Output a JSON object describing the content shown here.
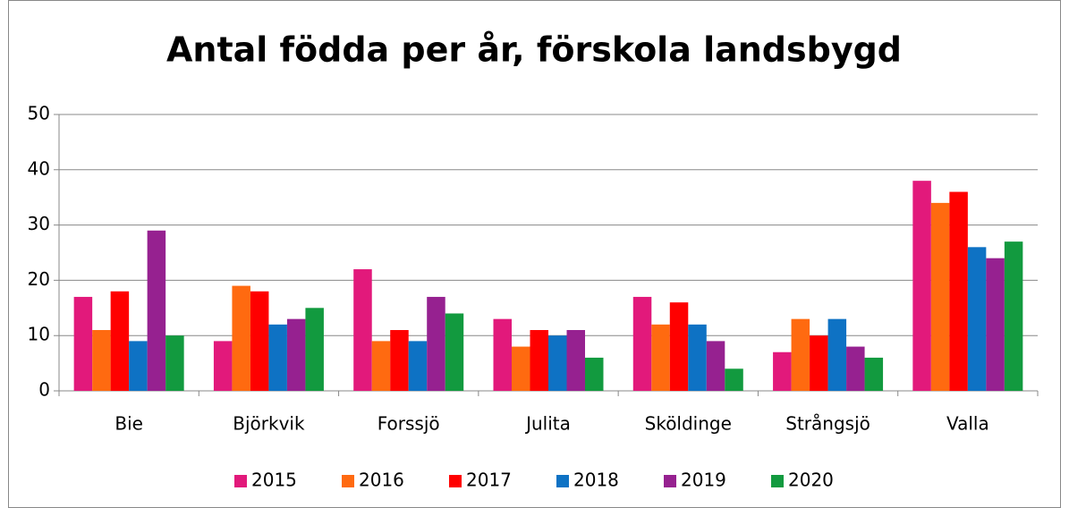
{
  "chart_data": {
    "type": "bar",
    "title": "Antal födda per år, förskola landsbygd",
    "categories": [
      "Bie",
      "Björkvik",
      "Forssjö",
      "Julita",
      "Sköldinge",
      "Strångsjö",
      "Valla"
    ],
    "series": [
      {
        "name": "2015",
        "color": "#e2197b",
        "values": [
          17,
          9,
          22,
          13,
          17,
          7,
          38
        ]
      },
      {
        "name": "2016",
        "color": "#ff6a10",
        "values": [
          11,
          19,
          9,
          8,
          12,
          13,
          34
        ]
      },
      {
        "name": "2017",
        "color": "#ff0000",
        "values": [
          18,
          18,
          11,
          11,
          16,
          10,
          36
        ]
      },
      {
        "name": "2018",
        "color": "#0e72c4",
        "values": [
          9,
          12,
          9,
          10,
          12,
          13,
          26
        ]
      },
      {
        "name": "2019",
        "color": "#962190",
        "values": [
          29,
          13,
          17,
          11,
          9,
          8,
          24
        ]
      },
      {
        "name": "2020",
        "color": "#129a3f",
        "values": [
          10,
          15,
          14,
          6,
          4,
          6,
          27
        ]
      }
    ],
    "ylim": [
      0,
      50
    ],
    "yticks": [
      0,
      10,
      20,
      30,
      40,
      50
    ],
    "grid": true,
    "legend": "bottom"
  }
}
